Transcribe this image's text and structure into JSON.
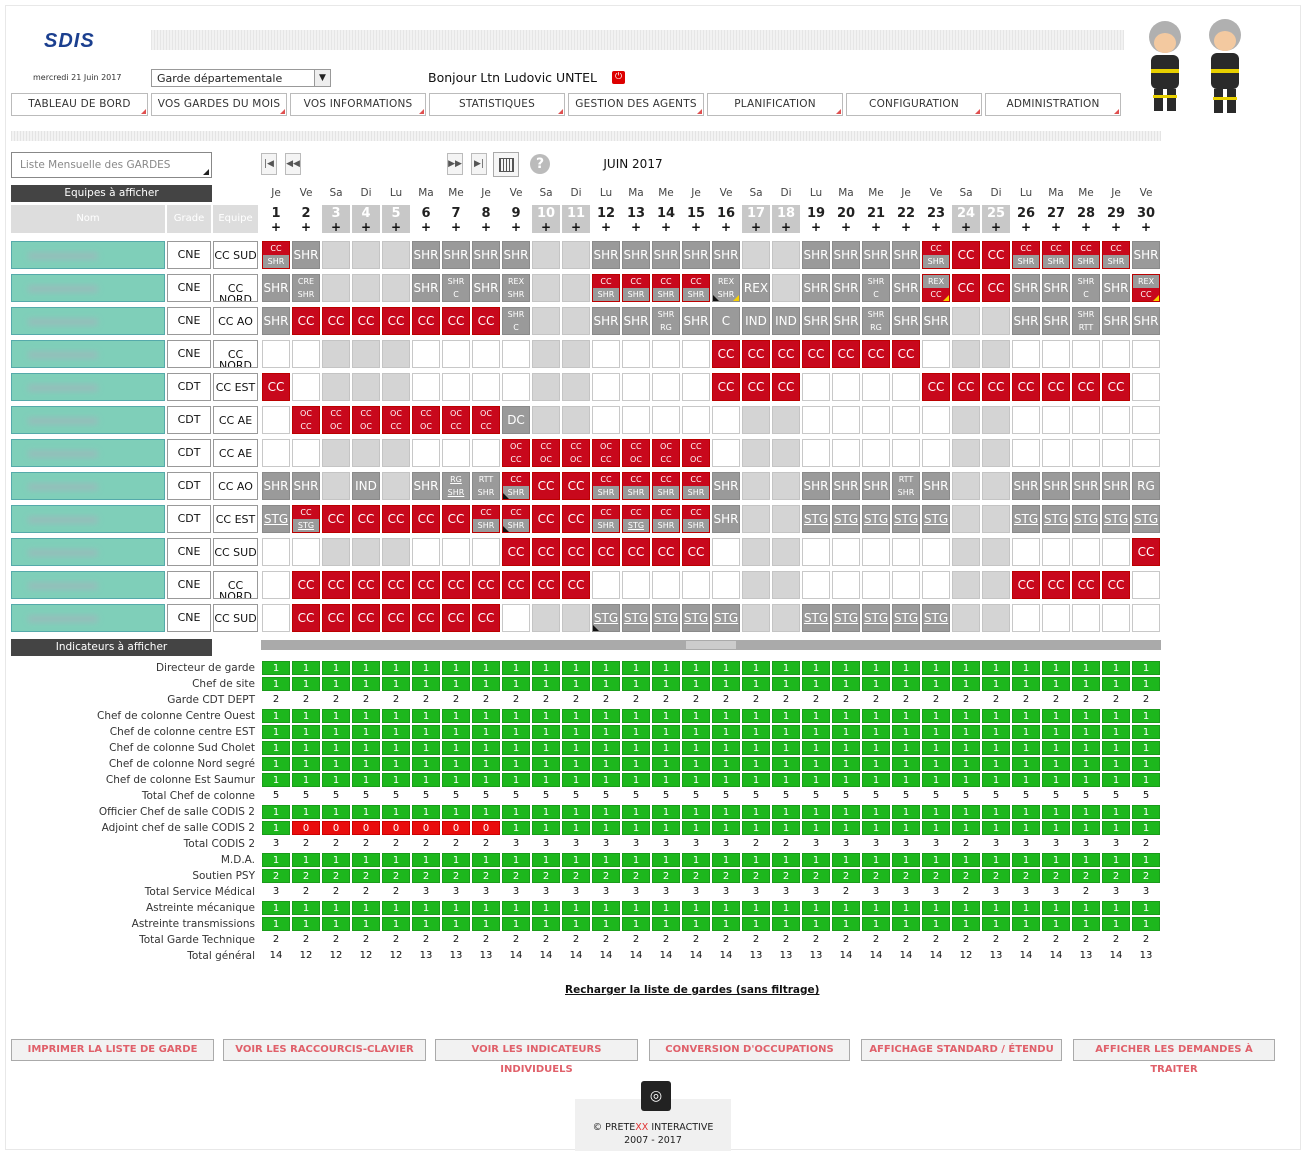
{
  "header": {
    "logo_text": "SDIS",
    "date": "mercredi 21 Juin 2017",
    "select_value": "Garde départementale",
    "greeting": "Bonjour Ltn Ludovic UNTEL"
  },
  "nav": [
    "TABLEAU DE BORD",
    "VOS GARDES DU MOIS",
    "VOS INFORMATIONS",
    "STATISTIQUES",
    "GESTION DES AGENTS",
    "PLANIFICATION",
    "CONFIGURATION",
    "ADMINISTRATION"
  ],
  "list_select_placeholder": "Liste Mensuelle des GARDES",
  "month": "JUIN 2017",
  "teams_header": "Equipes à afficher",
  "indicators_header": "Indicateurs à afficher",
  "columns": {
    "name": "Nom",
    "grade": "Grade",
    "team": "Equipe"
  },
  "days": [
    {
      "n": "1",
      "d": "Je",
      "we": false
    },
    {
      "n": "2",
      "d": "Ve",
      "we": false
    },
    {
      "n": "3",
      "d": "Sa",
      "we": true
    },
    {
      "n": "4",
      "d": "Di",
      "we": true
    },
    {
      "n": "5",
      "d": "Lu",
      "we": true
    },
    {
      "n": "6",
      "d": "Ma",
      "we": false
    },
    {
      "n": "7",
      "d": "Me",
      "we": false
    },
    {
      "n": "8",
      "d": "Je",
      "we": false
    },
    {
      "n": "9",
      "d": "Ve",
      "we": false
    },
    {
      "n": "10",
      "d": "Sa",
      "we": true
    },
    {
      "n": "11",
      "d": "Di",
      "we": true
    },
    {
      "n": "12",
      "d": "Lu",
      "we": false
    },
    {
      "n": "13",
      "d": "Ma",
      "we": false
    },
    {
      "n": "14",
      "d": "Me",
      "we": false
    },
    {
      "n": "15",
      "d": "Je",
      "we": false
    },
    {
      "n": "16",
      "d": "Ve",
      "we": false
    },
    {
      "n": "17",
      "d": "Sa",
      "we": true
    },
    {
      "n": "18",
      "d": "Di",
      "we": true
    },
    {
      "n": "19",
      "d": "Lu",
      "we": false
    },
    {
      "n": "20",
      "d": "Ma",
      "we": false
    },
    {
      "n": "21",
      "d": "Me",
      "we": false
    },
    {
      "n": "22",
      "d": "Je",
      "we": false
    },
    {
      "n": "23",
      "d": "Ve",
      "we": false
    },
    {
      "n": "24",
      "d": "Sa",
      "we": true
    },
    {
      "n": "25",
      "d": "Di",
      "we": true
    },
    {
      "n": "26",
      "d": "Lu",
      "we": false
    },
    {
      "n": "27",
      "d": "Ma",
      "we": false
    },
    {
      "n": "28",
      "d": "Me",
      "we": false
    },
    {
      "n": "29",
      "d": "Je",
      "we": false
    },
    {
      "n": "30",
      "d": "Ve",
      "we": false
    }
  ],
  "agents": [
    {
      "grade": "CNE",
      "team": "CC SUD",
      "cells": [
        "CC|SHR",
        "SHR",
        "g",
        "g",
        "g",
        "SHR",
        "SHR",
        "SHR",
        "SHR",
        "g",
        "g",
        "SHR",
        "SHR",
        "SHR",
        "SHR",
        "SHR",
        "g",
        "g",
        "SHR",
        "SHR",
        "SHR",
        "SHR",
        "CC|SHR",
        "CC",
        "CC",
        "CC|SHR",
        "CC|SHR",
        "CC|SHR",
        "CC|SHR",
        "SHR"
      ]
    },
    {
      "grade": "CNE",
      "team": "CC NORD",
      "cells": [
        "SHR",
        "CRE|SHR",
        "g",
        "g",
        "g",
        "SHR",
        "SHR|C",
        "SHR",
        "REX|SHR",
        "g",
        "g",
        "CC|SHR",
        "CC|SHR",
        "CC|SHR",
        "CC|SHR",
        "REX|SHR",
        "REX",
        "g",
        "SHR",
        "SHR",
        "SHR|C",
        "SHR",
        "REX|CC",
        "CC",
        "CC",
        "SHR",
        "SHR",
        "SHR|C",
        "SHR",
        "REX|CC"
      ]
    },
    {
      "grade": "CNE",
      "team": "CC AO",
      "cells": [
        "SHR",
        "CC",
        "CC",
        "CC",
        "CC",
        "CC",
        "CC",
        "CC",
        "SHR|C",
        "g",
        "g",
        "SHR",
        "SHR",
        "SHR|RG",
        "SHR",
        "C",
        "IND",
        "IND",
        "SHR",
        "SHR",
        "SHR|RG",
        "SHR",
        "SHR",
        "g",
        "g",
        "SHR",
        "SHR",
        "SHR|RTT",
        "SHR",
        "SHR"
      ]
    },
    {
      "grade": "CNE",
      "team": "CC NORD",
      "cells": [
        "",
        "",
        "g",
        "g",
        "g",
        "",
        "",
        "",
        "",
        "g",
        "g",
        "",
        "",
        "",
        "",
        "CC",
        "CC",
        "CC",
        "CC",
        "CC",
        "CC",
        "CC",
        "",
        "g",
        "g",
        "",
        "",
        "",
        "",
        ""
      ]
    },
    {
      "grade": "CDT",
      "team": "CC EST",
      "cells": [
        "CC",
        "",
        "g",
        "g",
        "g",
        "",
        "",
        "",
        "",
        "g",
        "g",
        "",
        "",
        "",
        "",
        "CC",
        "CC",
        "CC",
        "",
        "",
        "",
        "",
        "CC",
        "CC",
        "CC",
        "CC",
        "CC",
        "CC",
        "CC",
        ""
      ]
    },
    {
      "grade": "CDT",
      "team": "CC AE",
      "cells": [
        "",
        "OC|CC",
        "CC|OC",
        "CC|OC",
        "OC|CC",
        "CC|OC",
        "OC|CC",
        "OC|CC",
        "DC",
        "g",
        "g",
        "",
        "",
        "",
        "",
        "",
        "g",
        "g",
        "",
        "",
        "",
        "",
        "",
        "g",
        "g",
        "",
        "",
        "",
        "",
        ""
      ]
    },
    {
      "grade": "CDT",
      "team": "CC AE",
      "cells": [
        "",
        "",
        "g",
        "g",
        "g",
        "",
        "",
        "",
        "OC|CC",
        "CC|OC",
        "CC|OC",
        "OC|CC",
        "CC|OC",
        "OC|CC",
        "CC|OC",
        "",
        "g",
        "g",
        "",
        "",
        "",
        "",
        "",
        "g",
        "g",
        "",
        "",
        "",
        "",
        ""
      ]
    },
    {
      "grade": "CDT",
      "team": "CC AO",
      "cells": [
        "SHR",
        "SHR",
        "g",
        "IND",
        "g",
        "SHR",
        "RG|SHR",
        "RTT|SHR",
        "CC|SHR",
        "CC",
        "CC",
        "CC|SHR",
        "CC|SHR",
        "CC|SHR",
        "CC|SHR",
        "SHR",
        "g",
        "g",
        "SHR",
        "SHR",
        "SHR",
        "RTT|SHR",
        "SHR",
        "g",
        "g",
        "SHR",
        "SHR",
        "SHR",
        "SHR",
        "RG"
      ]
    },
    {
      "grade": "CDT",
      "team": "CC EST",
      "cells": [
        "STG",
        "CC|STG",
        "CC",
        "CC",
        "CC",
        "CC",
        "CC",
        "CC|SHR",
        "CC|SHR",
        "CC",
        "CC",
        "CC|SHR",
        "CC|STG",
        "CC|SHR",
        "CC|SHR",
        "SHR",
        "g",
        "g",
        "STG",
        "STG",
        "STG",
        "STG",
        "STG",
        "g",
        "g",
        "STG",
        "STG",
        "STG",
        "STG",
        "STG"
      ]
    },
    {
      "grade": "CNE",
      "team": "CC SUD",
      "cells": [
        "",
        "",
        "g",
        "g",
        "g",
        "",
        "",
        "",
        "CC",
        "CC",
        "CC",
        "CC",
        "CC",
        "CC",
        "CC",
        "",
        "g",
        "g",
        "",
        "",
        "",
        "",
        "",
        "g",
        "g",
        "",
        "",
        "",
        "",
        "CC"
      ]
    },
    {
      "grade": "CNE",
      "team": "CC NORD",
      "cells": [
        "",
        "CC",
        "CC",
        "CC",
        "CC",
        "CC",
        "CC",
        "CC",
        "CC",
        "CC",
        "CC",
        "",
        "",
        "",
        "",
        "",
        "g",
        "g",
        "",
        "",
        "",
        "",
        "",
        "g",
        "g",
        "CC",
        "CC",
        "CC",
        "CC",
        ""
      ]
    },
    {
      "grade": "CNE",
      "team": "CC SUD",
      "cells": [
        "",
        "CC",
        "CC",
        "CC",
        "CC",
        "CC",
        "CC",
        "CC",
        "",
        "g",
        "g",
        "STG",
        "STG",
        "STG",
        "STG",
        "STG",
        "g",
        "g",
        "STG",
        "STG",
        "STG",
        "STG",
        "STG",
        "g",
        "g",
        "",
        "",
        "",
        "",
        ""
      ]
    }
  ],
  "indicators": [
    {
      "label": "Directeur de garde",
      "type": "g",
      "values": [
        "1",
        "1",
        "1",
        "1",
        "1",
        "1",
        "1",
        "1",
        "1",
        "1",
        "1",
        "1",
        "1",
        "1",
        "1",
        "1",
        "1",
        "1",
        "1",
        "1",
        "1",
        "1",
        "1",
        "1",
        "1",
        "1",
        "1",
        "1",
        "1",
        "1"
      ]
    },
    {
      "label": "Chef de site",
      "type": "g",
      "values": [
        "1",
        "1",
        "1",
        "1",
        "1",
        "1",
        "1",
        "1",
        "1",
        "1",
        "1",
        "1",
        "1",
        "1",
        "1",
        "1",
        "1",
        "1",
        "1",
        "1",
        "1",
        "1",
        "1",
        "1",
        "1",
        "1",
        "1",
        "1",
        "1",
        "1"
      ]
    },
    {
      "label": "Garde CDT DEPT",
      "type": "p",
      "values": [
        "2",
        "2",
        "2",
        "2",
        "2",
        "2",
        "2",
        "2",
        "2",
        "2",
        "2",
        "2",
        "2",
        "2",
        "2",
        "2",
        "2",
        "2",
        "2",
        "2",
        "2",
        "2",
        "2",
        "2",
        "2",
        "2",
        "2",
        "2",
        "2",
        "2"
      ]
    },
    {
      "label": "Chef de colonne Centre Ouest",
      "type": "g",
      "values": [
        "1",
        "1",
        "1",
        "1",
        "1",
        "1",
        "1",
        "1",
        "1",
        "1",
        "1",
        "1",
        "1",
        "1",
        "1",
        "1",
        "1",
        "1",
        "1",
        "1",
        "1",
        "1",
        "1",
        "1",
        "1",
        "1",
        "1",
        "1",
        "1",
        "1"
      ]
    },
    {
      "label": "Chef de colonne centre EST",
      "type": "g",
      "values": [
        "1",
        "1",
        "1",
        "1",
        "1",
        "1",
        "1",
        "1",
        "1",
        "1",
        "1",
        "1",
        "1",
        "1",
        "1",
        "1",
        "1",
        "1",
        "1",
        "1",
        "1",
        "1",
        "1",
        "1",
        "1",
        "1",
        "1",
        "1",
        "1",
        "1"
      ]
    },
    {
      "label": "Chef de colonne Sud Cholet",
      "type": "g",
      "values": [
        "1",
        "1",
        "1",
        "1",
        "1",
        "1",
        "1",
        "1",
        "1",
        "1",
        "1",
        "1",
        "1",
        "1",
        "1",
        "1",
        "1",
        "1",
        "1",
        "1",
        "1",
        "1",
        "1",
        "1",
        "1",
        "1",
        "1",
        "1",
        "1",
        "1"
      ]
    },
    {
      "label": "Chef de colonne Nord segré",
      "type": "g",
      "values": [
        "1",
        "1",
        "1",
        "1",
        "1",
        "1",
        "1",
        "1",
        "1",
        "1",
        "1",
        "1",
        "1",
        "1",
        "1",
        "1",
        "1",
        "1",
        "1",
        "1",
        "1",
        "1",
        "1",
        "1",
        "1",
        "1",
        "1",
        "1",
        "1",
        "1"
      ]
    },
    {
      "label": "Chef de colonne Est Saumur",
      "type": "g",
      "values": [
        "1",
        "1",
        "1",
        "1",
        "1",
        "1",
        "1",
        "1",
        "1",
        "1",
        "1",
        "1",
        "1",
        "1",
        "1",
        "1",
        "1",
        "1",
        "1",
        "1",
        "1",
        "1",
        "1",
        "1",
        "1",
        "1",
        "1",
        "1",
        "1",
        "1"
      ]
    },
    {
      "label": "Total Chef de colonne",
      "type": "p",
      "values": [
        "5",
        "5",
        "5",
        "5",
        "5",
        "5",
        "5",
        "5",
        "5",
        "5",
        "5",
        "5",
        "5",
        "5",
        "5",
        "5",
        "5",
        "5",
        "5",
        "5",
        "5",
        "5",
        "5",
        "5",
        "5",
        "5",
        "5",
        "5",
        "5",
        "5"
      ]
    },
    {
      "label": "Officier Chef de salle CODIS 2",
      "type": "g",
      "values": [
        "1",
        "1",
        "1",
        "1",
        "1",
        "1",
        "1",
        "1",
        "1",
        "1",
        "1",
        "1",
        "1",
        "1",
        "1",
        "1",
        "1",
        "1",
        "1",
        "1",
        "1",
        "1",
        "1",
        "1",
        "1",
        "1",
        "1",
        "1",
        "1",
        "1"
      ]
    },
    {
      "label": "Adjoint chef de salle CODIS 2",
      "type": "mix",
      "values": [
        "1",
        "0",
        "0",
        "0",
        "0",
        "0",
        "0",
        "0",
        "1",
        "1",
        "1",
        "1",
        "1",
        "1",
        "1",
        "1",
        "1",
        "1",
        "1",
        "1",
        "1",
        "1",
        "1",
        "1",
        "1",
        "1",
        "1",
        "1",
        "1",
        "1"
      ]
    },
    {
      "label": "Total CODIS 2",
      "type": "p",
      "values": [
        "3",
        "2",
        "2",
        "2",
        "2",
        "2",
        "2",
        "2",
        "3",
        "3",
        "3",
        "3",
        "3",
        "3",
        "3",
        "3",
        "2",
        "2",
        "3",
        "3",
        "3",
        "3",
        "3",
        "2",
        "3",
        "3",
        "3",
        "3",
        "3",
        "2"
      ]
    },
    {
      "label": "M.D.A.",
      "type": "g",
      "values": [
        "1",
        "1",
        "1",
        "1",
        "1",
        "1",
        "1",
        "1",
        "1",
        "1",
        "1",
        "1",
        "1",
        "1",
        "1",
        "1",
        "1",
        "1",
        "1",
        "1",
        "1",
        "1",
        "1",
        "1",
        "1",
        "1",
        "1",
        "1",
        "1",
        "1"
      ]
    },
    {
      "label": "Soutien PSY",
      "type": "g",
      "values": [
        "2",
        "2",
        "2",
        "2",
        "2",
        "2",
        "2",
        "2",
        "2",
        "2",
        "2",
        "2",
        "2",
        "2",
        "2",
        "2",
        "2",
        "2",
        "2",
        "2",
        "2",
        "2",
        "2",
        "2",
        "2",
        "2",
        "2",
        "2",
        "2",
        "2"
      ]
    },
    {
      "label": "Total Service Médical",
      "type": "p",
      "values": [
        "3",
        "2",
        "2",
        "2",
        "2",
        "3",
        "3",
        "3",
        "3",
        "3",
        "3",
        "3",
        "3",
        "3",
        "3",
        "3",
        "3",
        "3",
        "3",
        "2",
        "3",
        "3",
        "3",
        "2",
        "3",
        "3",
        "3",
        "2",
        "3",
        "3"
      ]
    },
    {
      "label": "Astreinte mécanique",
      "type": "g",
      "values": [
        "1",
        "1",
        "1",
        "1",
        "1",
        "1",
        "1",
        "1",
        "1",
        "1",
        "1",
        "1",
        "1",
        "1",
        "1",
        "1",
        "1",
        "1",
        "1",
        "1",
        "1",
        "1",
        "1",
        "1",
        "1",
        "1",
        "1",
        "1",
        "1",
        "1"
      ]
    },
    {
      "label": "Astreinte transmissions",
      "type": "g",
      "values": [
        "1",
        "1",
        "1",
        "1",
        "1",
        "1",
        "1",
        "1",
        "1",
        "1",
        "1",
        "1",
        "1",
        "1",
        "1",
        "1",
        "1",
        "1",
        "1",
        "1",
        "1",
        "1",
        "1",
        "1",
        "1",
        "1",
        "1",
        "1",
        "1",
        "1"
      ]
    },
    {
      "label": "Total Garde Technique",
      "type": "p",
      "values": [
        "2",
        "2",
        "2",
        "2",
        "2",
        "2",
        "2",
        "2",
        "2",
        "2",
        "2",
        "2",
        "2",
        "2",
        "2",
        "2",
        "2",
        "2",
        "2",
        "2",
        "2",
        "2",
        "2",
        "2",
        "2",
        "2",
        "2",
        "2",
        "2",
        "2"
      ]
    },
    {
      "label": "Total général",
      "type": "p",
      "values": [
        "14",
        "12",
        "12",
        "12",
        "12",
        "13",
        "13",
        "13",
        "14",
        "14",
        "14",
        "14",
        "14",
        "14",
        "14",
        "14",
        "13",
        "13",
        "13",
        "14",
        "14",
        "14",
        "14",
        "12",
        "13",
        "14",
        "14",
        "13",
        "14",
        "13"
      ]
    }
  ],
  "reload_link": "Recharger la liste de gardes (sans filtrage)",
  "bottom_buttons": [
    "IMPRIMER LA LISTE DE GARDE",
    "VOIR LES RACCOURCIS-CLAVIER",
    "VOIR LES INDICATEURS INDIVIDUELS",
    "CONVERSION D'OCCUPATIONS",
    "AFFICHAGE STANDARD / ÉTENDU",
    "AFFICHER LES DEMANDES À TRAITER"
  ],
  "footer": {
    "copyright": "©",
    "brand_a": "PRETE",
    "brand_b": "XX",
    "brand_c": " INTERACTIVE",
    "years": "2007 - 2017"
  }
}
